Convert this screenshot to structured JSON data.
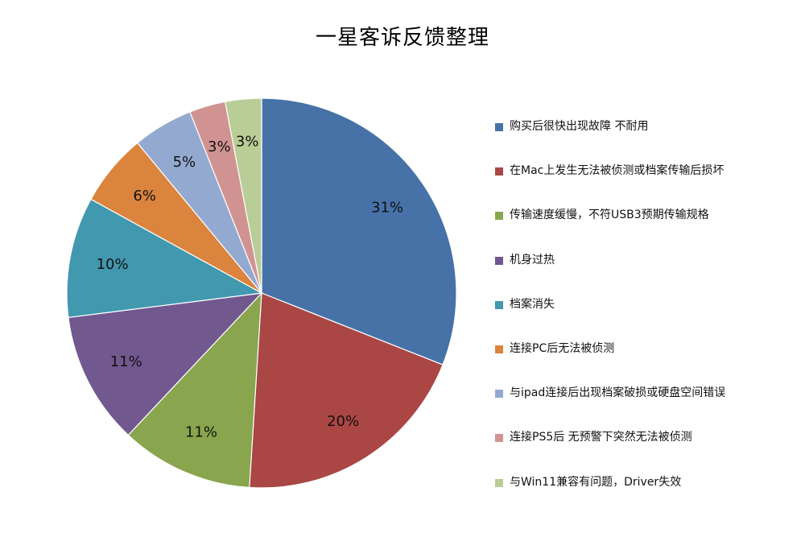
{
  "chart_data": {
    "type": "pie",
    "title": "一星客诉反馈整理",
    "categories": [
      "购买后很快出现故障 不耐用",
      "在Mac上发生无法被侦测或档案传输后损坏",
      "传输速度缓慢，不符USB3预期传输规格",
      "机身过热",
      "档案消失",
      "连接PC后无法被侦测",
      "与ipad连接后出现档案破损或硬盘空间错误",
      "连接PS5后 无预警下突然无法被侦测",
      "与Win11兼容有问题，Driver失效"
    ],
    "values": [
      31,
      20,
      11,
      11,
      10,
      6,
      5,
      3,
      3
    ],
    "data_labels": [
      "31%",
      "20%",
      "11%",
      "11%",
      "10%",
      "6%",
      "5%",
      "3%",
      "3%"
    ],
    "colors": [
      "#4672A8",
      "#AA4644",
      "#89A54E",
      "#71588F",
      "#4198AF",
      "#DB843D",
      "#93A9CF",
      "#D19392",
      "#B9CD96"
    ],
    "legend_position": "right",
    "start_angle": "12 o'clock",
    "direction": "clockwise"
  }
}
